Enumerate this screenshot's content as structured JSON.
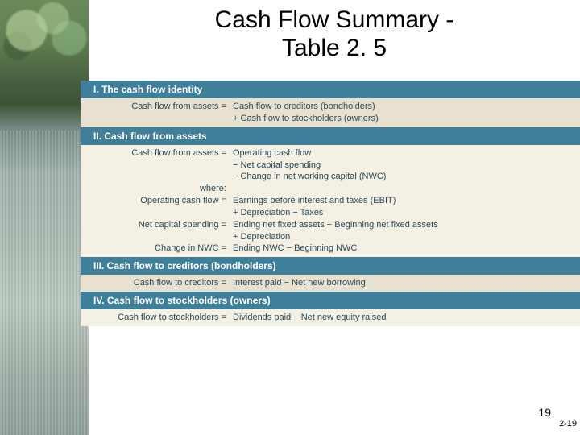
{
  "title_line1": "Cash Flow Summary -",
  "title_line2": "Table 2. 5",
  "colors": {
    "header_bg": "#3f7f99",
    "body_bg_alt": "#e8e1cf",
    "body_bg": "#f5f0e4",
    "header_text": "#ffffff",
    "body_text": "#2a4a5a"
  },
  "sections": [
    {
      "header": "I.  The cash flow identity",
      "lines": [
        {
          "left": "Cash flow from assets =",
          "right": "Cash flow to creditors (bondholders)"
        },
        {
          "left": "",
          "right": "+ Cash flow to stockholders (owners)"
        }
      ]
    },
    {
      "header": "II.  Cash flow from assets",
      "lines": [
        {
          "left": "Cash flow from assets =",
          "right": "Operating cash flow"
        },
        {
          "left": "",
          "right": "− Net capital spending"
        },
        {
          "left": "",
          "right": "− Change in net working capital (NWC)"
        },
        {
          "left": "where:",
          "right": ""
        },
        {
          "left": "   Operating cash flow =",
          "right": "Earnings before interest and taxes (EBIT)"
        },
        {
          "left": "",
          "right": "+ Depreciation − Taxes"
        },
        {
          "left": "   Net capital spending =",
          "right": "Ending net fixed assets − Beginning net fixed assets"
        },
        {
          "left": "",
          "right": "+ Depreciation"
        },
        {
          "left": "      Change in NWC =",
          "right": "Ending NWC − Beginning NWC"
        }
      ]
    },
    {
      "header": "III.  Cash flow to creditors (bondholders)",
      "lines": [
        {
          "left": "Cash flow to creditors =",
          "right": "Interest paid − Net new borrowing"
        }
      ]
    },
    {
      "header": "IV.  Cash flow to stockholders (owners)",
      "lines": [
        {
          "left": "Cash flow to stockholders =",
          "right": "Dividends paid − Net new equity raised"
        }
      ]
    }
  ],
  "footer_num": "19",
  "footer_pg": "2-19"
}
